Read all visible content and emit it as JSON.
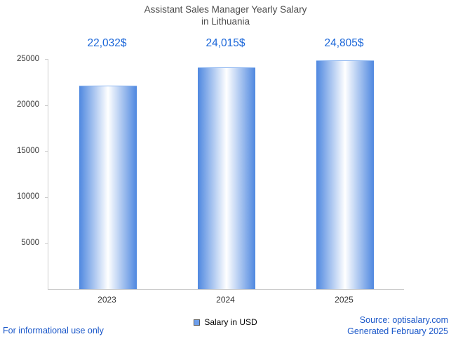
{
  "title": {
    "line1": "Assistant Sales Manager Yearly Salary",
    "line2": "in Lithuania"
  },
  "chart_data": {
    "type": "bar",
    "title": "Assistant Sales Manager Yearly Salary in Lithuania",
    "categories": [
      "2023",
      "2024",
      "2025"
    ],
    "values": [
      22032,
      24015,
      24805
    ],
    "value_labels": [
      "22,032$",
      "24,015$",
      "24,805$"
    ],
    "xlabel": "",
    "ylabel": "",
    "ylim": [
      0,
      25000
    ],
    "yticks": [
      5000,
      10000,
      15000,
      20000,
      25000
    ],
    "grid": false,
    "legend_position": "bottom",
    "legend": [
      {
        "label": "Salary in USD",
        "color": "#6d9eeb"
      }
    ]
  },
  "footer": {
    "disclaimer": "For informational use only",
    "source": "Source: optisalary.com",
    "generated": "Generated February 2025"
  },
  "colors": {
    "accent_blue": "#1a66d9",
    "footer_blue": "#1a57c9",
    "bar_edge": "#4f88e0",
    "bar_center": "#ffffff",
    "axis_line": "#cccccc",
    "title_gray": "#4d4d4d",
    "tick_text": "#333333"
  }
}
